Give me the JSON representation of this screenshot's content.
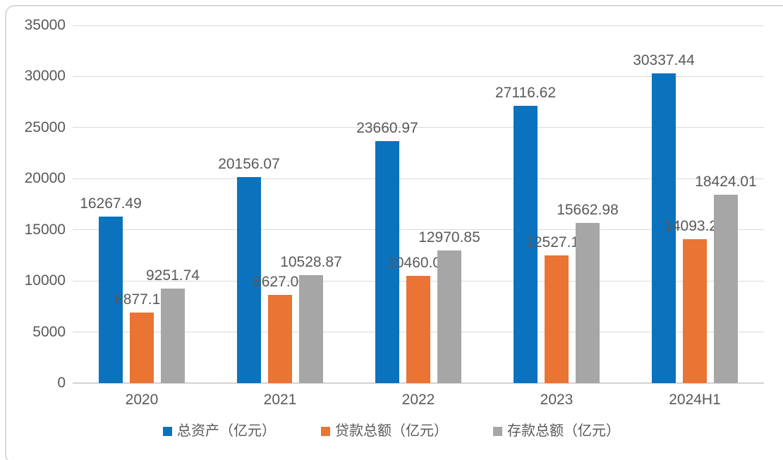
{
  "chart_data": {
    "type": "bar",
    "title": "",
    "xlabel": "",
    "ylabel": "",
    "categories": [
      "2020",
      "2021",
      "2022",
      "2023",
      "2024H1"
    ],
    "series": [
      {
        "name": "总资产（亿元）",
        "slug": "total-assets",
        "color": "#0B72BE",
        "values": [
          16267.49,
          20156.07,
          23660.97,
          27116.62,
          30337.44
        ]
      },
      {
        "name": "贷款总额（亿元）",
        "slug": "total-loans",
        "color": "#EA7433",
        "values": [
          6877.15,
          8627.09,
          10460.02,
          12527.18,
          14093.28
        ]
      },
      {
        "name": "存款总额（亿元）",
        "slug": "total-deposits",
        "color": "#A6A6A6",
        "values": [
          9251.74,
          10528.87,
          12970.85,
          15662.98,
          18424.01
        ]
      }
    ],
    "ylim": [
      0,
      35000
    ],
    "ytick_step": 5000,
    "yticks": [
      0,
      5000,
      10000,
      15000,
      20000,
      25000,
      30000,
      35000
    ],
    "grid": true,
    "data_labels": true,
    "legend_position": "bottom"
  },
  "palette": {
    "axis_text": "#595959",
    "data_label_text": "#595959",
    "legend_text": "#595959",
    "gridline": "#D9D9D9",
    "axis_line": "#D2D2D2",
    "frame_border": "#D9D9D9",
    "background": "#FFFFFF"
  }
}
